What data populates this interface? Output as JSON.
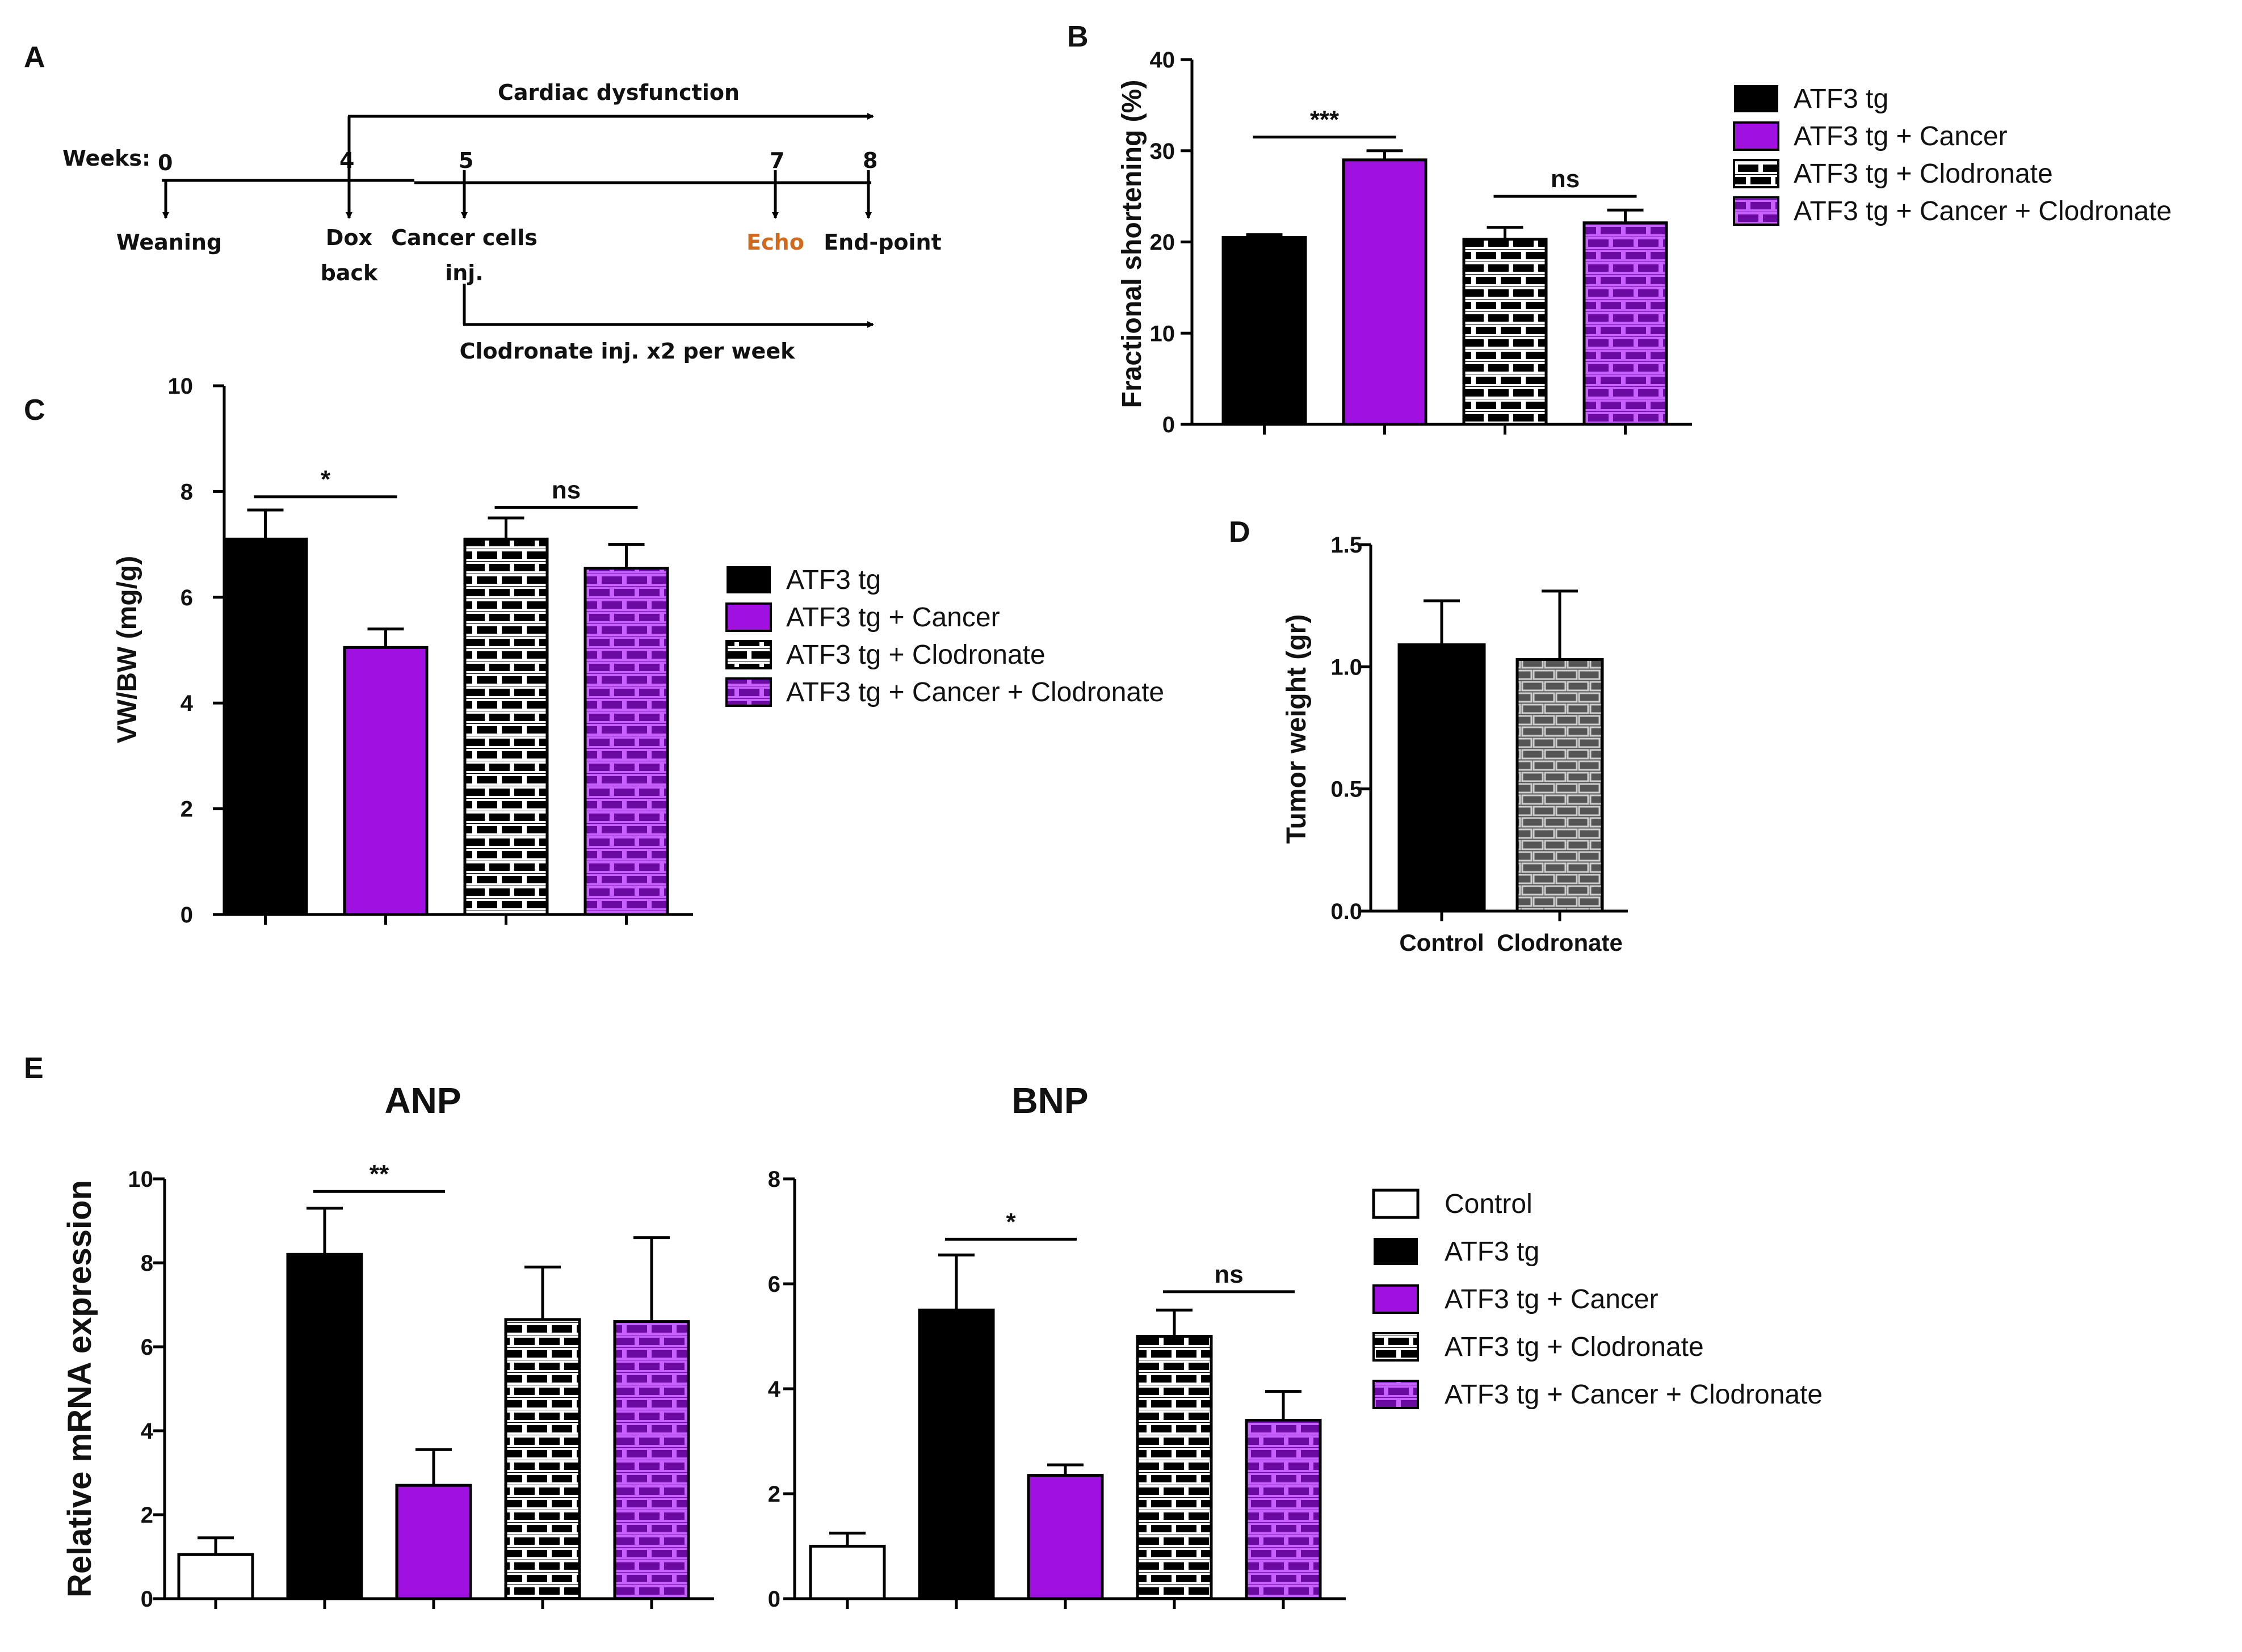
{
  "colors": {
    "control": "#ffffff",
    "atf3": "#000000",
    "cancer": "#a010e0",
    "orange": "#d26a1e",
    "pattern_white": "#ffffff",
    "pattern_purple": "#b030e8"
  },
  "panel_labels": {
    "a": "A",
    "b": "B",
    "c": "C",
    "d": "D",
    "e": "E"
  },
  "timeline": {
    "weeks_label": "Weeks:",
    "week_marks": [
      "0",
      "4",
      "5",
      "7",
      "8"
    ],
    "events": [
      "Weaning",
      "Dox",
      "back",
      "Cancer cells",
      "inj.",
      "Echo",
      "End-point"
    ],
    "top_arrow_label": "Cardiac dysfunction",
    "bottom_arrow_label": "Clodronate inj. x2 per week"
  },
  "legend": {
    "atf3": "ATF3 tg",
    "cancer": "ATF3 tg + Cancer",
    "clodronate": "ATF3 tg + Clodronate",
    "cancer_clodronate": "ATF3 tg + Cancer + Clodronate",
    "control": "Control"
  },
  "chart_data": [
    {
      "id": "B",
      "type": "bar",
      "ylabel": "Fractional shortening (%)",
      "ylim": [
        0,
        40
      ],
      "yticks": [
        "0",
        "10",
        "20",
        "30",
        "40"
      ],
      "categories": [
        "ATF3 tg",
        "ATF3 tg + Cancer",
        "ATF3 tg + Clodronate",
        "ATF3 tg + Cancer + Clodronate"
      ],
      "values": [
        20.5,
        29.0,
        20.3,
        22.1
      ],
      "errors": [
        0.3,
        1.0,
        1.3,
        1.4
      ],
      "significance": [
        {
          "label": "***",
          "from": 0,
          "to": 1,
          "y": 31.5
        },
        {
          "label": "ns",
          "from": 2,
          "to": 3,
          "y": 25.0
        }
      ]
    },
    {
      "id": "C",
      "type": "bar",
      "ylabel": "VW/BW (mg/g)",
      "ylim": [
        0,
        10
      ],
      "yticks": [
        "0",
        "2",
        "4",
        "6",
        "8",
        "10"
      ],
      "categories": [
        "ATF3 tg",
        "ATF3 tg + Cancer",
        "ATF3 tg + Clodronate",
        "ATF3 tg + Cancer + Clodronate"
      ],
      "values": [
        7.1,
        5.05,
        7.1,
        6.55
      ],
      "errors": [
        0.55,
        0.35,
        0.4,
        0.45
      ],
      "significance": [
        {
          "label": "*",
          "from": 0,
          "to": 1,
          "y": 7.9
        },
        {
          "label": "ns",
          "from": 2,
          "to": 3,
          "y": 7.7
        }
      ]
    },
    {
      "id": "D",
      "type": "bar",
      "ylabel": "Tumor weight (gr)",
      "ylim": [
        0,
        1.5
      ],
      "yticks": [
        "0.0",
        "0.5",
        "1.0",
        "1.5"
      ],
      "categories": [
        "Control",
        "Clodronate"
      ],
      "values": [
        1.09,
        1.03
      ],
      "errors": [
        0.18,
        0.28
      ],
      "significance": []
    },
    {
      "id": "E-ANP",
      "type": "bar",
      "title": "ANP",
      "ylabel": "Relative mRNA expression",
      "ylim": [
        0,
        10
      ],
      "yticks": [
        "0",
        "2",
        "4",
        "6",
        "8",
        "10"
      ],
      "categories": [
        "Control",
        "ATF3 tg",
        "ATF3 tg + Cancer",
        "ATF3 tg + Clodronate",
        "ATF3 tg + Cancer + Clodronate"
      ],
      "values": [
        1.05,
        8.2,
        2.7,
        6.65,
        6.6
      ],
      "errors": [
        0.4,
        1.1,
        0.85,
        1.25,
        2.0
      ],
      "significance": [
        {
          "label": "**",
          "from": 1,
          "to": 2,
          "y": 9.7
        }
      ]
    },
    {
      "id": "E-BNP",
      "type": "bar",
      "title": "BNP",
      "ylabel": "",
      "ylim": [
        0,
        8
      ],
      "yticks": [
        "0",
        "2",
        "4",
        "6",
        "8"
      ],
      "categories": [
        "Control",
        "ATF3 tg",
        "ATF3 tg + Cancer",
        "ATF3 tg + Clodronate",
        "ATF3 tg + Cancer + Clodronate"
      ],
      "values": [
        1.0,
        5.5,
        2.35,
        5.0,
        3.4
      ],
      "errors": [
        0.25,
        1.05,
        0.2,
        0.5,
        0.55
      ],
      "significance": [
        {
          "label": "*",
          "from": 1,
          "to": 2,
          "y": 6.85
        },
        {
          "label": "ns",
          "from": 3,
          "to": 4,
          "y": 5.85
        }
      ]
    }
  ]
}
